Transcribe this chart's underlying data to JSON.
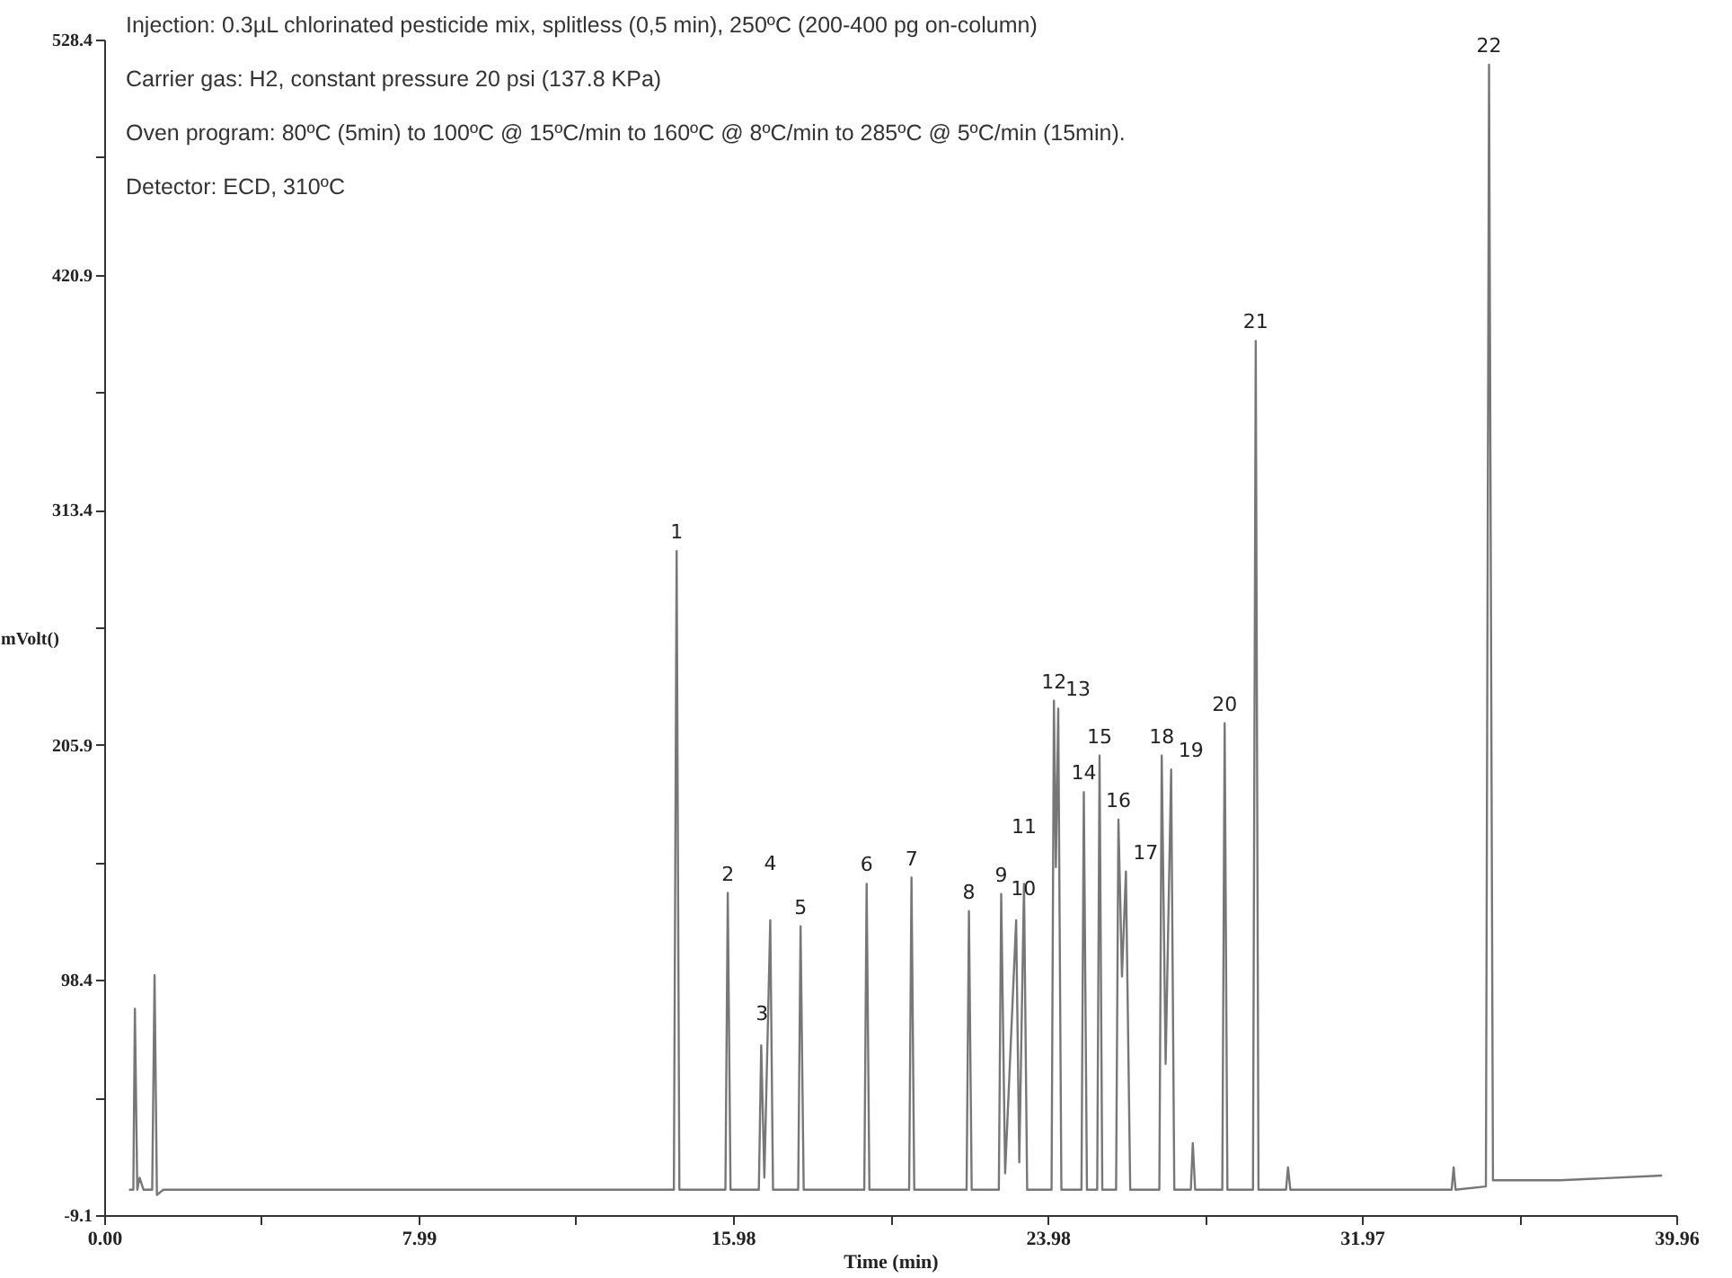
{
  "chart_data": {
    "type": "line",
    "xlabel": "Time (min)",
    "ylabel": "mVolt()",
    "xlim": [
      0,
      39.96
    ],
    "ylim": [
      -9.1,
      528.4
    ],
    "xticks": [
      {
        "value": 0,
        "label": "0.00"
      },
      {
        "value": 3.995,
        "label": null
      },
      7.99,
      {
        "value": 11.985,
        "label": null
      },
      15.98,
      {
        "value": 19.98,
        "label": null
      },
      23.98,
      {
        "value": 27.975,
        "label": null
      },
      31.97,
      {
        "value": 35.965,
        "label": null
      },
      39.96
    ],
    "yticks": [
      -9.1,
      {
        "value": 44.65,
        "label": null
      },
      98.4,
      {
        "value": 152.15,
        "label": null
      },
      205.9,
      {
        "value": 259.65,
        "label": null
      },
      313.4,
      {
        "value": 367.15,
        "label": null
      },
      420.9,
      {
        "value": 474.65,
        "label": null
      },
      528.4
    ],
    "grid": false,
    "series": [
      {
        "color": "#777777",
        "x": [
          0.63,
          0.74,
          0.78,
          0.84,
          0.9,
          1.0,
          1.22,
          1.28,
          1.34,
          1.5,
          14.48,
          14.55,
          14.62,
          15.79,
          15.85,
          15.92,
          16.64,
          16.7,
          16.78,
          16.93,
          17.0,
          17.64,
          17.7,
          17.78,
          19.32,
          19.38,
          19.45,
          20.46,
          20.52,
          20.59,
          21.92,
          21.98,
          22.05,
          22.74,
          22.8,
          22.9,
          23.18,
          23.26,
          23.38,
          23.46,
          24.08,
          24.14,
          24.19,
          24.25,
          24.33,
          24.84,
          24.9,
          24.98,
          25.24,
          25.3,
          25.37,
          25.72,
          25.78,
          25.87,
          25.97,
          26.08,
          26.82,
          26.88,
          26.98,
          27.12,
          27.2,
          27.62,
          27.67,
          27.73,
          28.42,
          28.48,
          28.55,
          29.2,
          29.27,
          29.34,
          30.04,
          30.09,
          30.15,
          34.25,
          34.3,
          34.35,
          35.12,
          35.2,
          35.3,
          37,
          39.6
        ],
        "values": [
          2.5,
          2.5,
          85.2,
          2.5,
          8,
          2.5,
          2.5,
          100.6,
          0.1,
          2.5,
          2.5,
          294.5,
          2.5,
          2.5,
          138.2,
          2.5,
          2.5,
          68.5,
          8,
          125.7,
          2.5,
          2.5,
          122.9,
          2.5,
          2.5,
          142.4,
          2.5,
          2.5,
          145.2,
          2.5,
          2.5,
          129.9,
          2.5,
          2.5,
          137.7,
          10,
          125.7,
          15,
          142.4,
          2.5,
          2.5,
          226.1,
          150,
          222.5,
          2.5,
          2.5,
          184.3,
          2.5,
          2.5,
          201.0,
          2.5,
          2.5,
          171.7,
          100,
          148.0,
          2.5,
          2.5,
          201.0,
          60,
          194.6,
          2.5,
          2.5,
          23.8,
          2.5,
          2.5,
          215.8,
          2.5,
          2.5,
          390.6,
          2.5,
          2.5,
          12.7,
          2.5,
          2.5,
          12.7,
          2.5,
          4,
          516.9,
          6.8,
          6.8,
          9
        ]
      }
    ],
    "annotations": [
      "Injection: 0.3µL chlorinated pesticide mix, splitless (0,5 min), 250ºC (200-400 pg on-column)",
      "Carrier gas: H2, constant pressure 20 psi (137.8 KPa)",
      "Oven program: 80ºC (5min) to 100ºC @ 15ºC/min to 160ºC @ 8ºC/min to 285ºC @ 5ºC/min (15min).",
      "Detector: ECD, 310ºC",
      {
        "text": "1",
        "x": 14.55,
        "y": 294.5
      },
      {
        "text": "2",
        "x": 15.85,
        "y": 138.2
      },
      {
        "text": "3",
        "x": 16.7,
        "y": 68.5
      },
      {
        "text": "4",
        "x": 16.93,
        "y": 125.7
      },
      {
        "text": "5",
        "x": 17.7,
        "y": 122.9
      },
      {
        "text": "6",
        "x": 19.38,
        "y": 142.4
      },
      {
        "text": "7",
        "x": 20.52,
        "y": 145.2
      },
      {
        "text": "8",
        "x": 21.98,
        "y": 129.9
      },
      {
        "text": "9",
        "x": 22.8,
        "y": 137.7
      },
      {
        "text": "10",
        "x": 23.18,
        "y": 125.7
      },
      {
        "text": "11",
        "x": 23.38,
        "y": 142.4
      },
      {
        "text": "12",
        "x": 24.14,
        "y": 226.1
      },
      {
        "text": "13",
        "x": 24.25,
        "y": 222.5
      },
      {
        "text": "14",
        "x": 24.9,
        "y": 184.3
      },
      {
        "text": "15",
        "x": 25.3,
        "y": 201.0
      },
      {
        "text": "16",
        "x": 25.78,
        "y": 171.7
      },
      {
        "text": "17",
        "x": 25.97,
        "y": 148.0
      },
      {
        "text": "18",
        "x": 26.88,
        "y": 201.0
      },
      {
        "text": "19",
        "x": 27.12,
        "y": 194.6
      },
      {
        "text": "20",
        "x": 28.48,
        "y": 215.8
      },
      {
        "text": "21",
        "x": 29.27,
        "y": 390.6
      },
      {
        "text": "22",
        "x": 35.2,
        "y": 516.9
      }
    ]
  }
}
